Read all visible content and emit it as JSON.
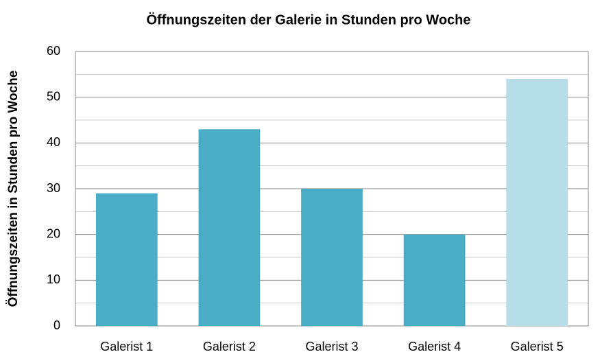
{
  "chart_data": {
    "type": "bar",
    "title": "Öffnungszeiten der Galerie in Stunden pro Woche",
    "y_label": "Öffnungszeiten in Stunden pro Woche",
    "categories": [
      "Galerist 1",
      "Galerist 2",
      "Galerist 3",
      "Galerist 4",
      "Galerist 5"
    ],
    "values": [
      29,
      43,
      30,
      20,
      54
    ],
    "colors": [
      "#4bacc6",
      "#4bacc6",
      "#4bacc6",
      "#4bacc6",
      "#b7dde8"
    ],
    "ylim": [
      0,
      60
    ],
    "yticks": [
      0,
      10,
      20,
      30,
      40,
      50,
      60
    ],
    "minor_yticks": [
      5,
      15,
      25,
      35,
      45,
      55
    ],
    "grid": true
  }
}
